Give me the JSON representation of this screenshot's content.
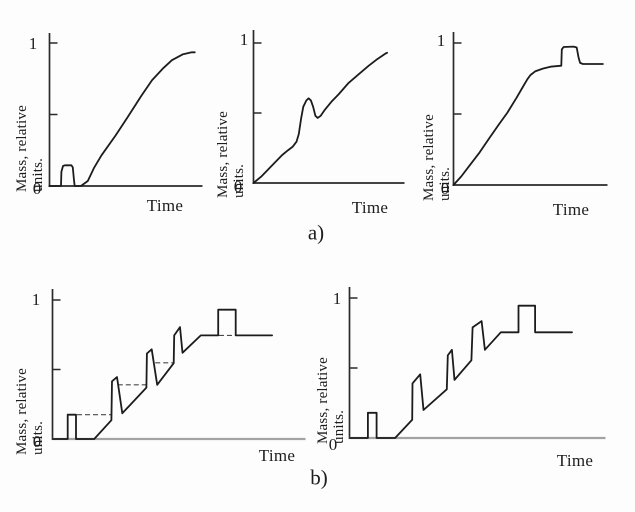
{
  "figure": {
    "background": "#fdfdfd",
    "ink": "#1c1c1c",
    "axis_color": "#2a2a2a",
    "baseline_gray": "#a3a3a3",
    "dash_color": "#4a4a4a"
  },
  "captions": {
    "row_a": "a)",
    "row_b": "b)"
  },
  "axis_text": {
    "one": "1",
    "zero": "0",
    "time": "Time",
    "mass_line1": "Mass, relative",
    "mass_line2": "units."
  },
  "chart_data": [
    {
      "id": "a1",
      "row": "a",
      "type": "line",
      "title": "",
      "xlabel": "Time",
      "ylabel": "Mass, relative units.",
      "ylim": [
        0,
        1
      ],
      "yticks": [
        0,
        0.5,
        1
      ],
      "ytick_labels": [
        "0",
        "",
        "1"
      ],
      "grid": false,
      "legend": false,
      "description": "small pulse to ~0.15 then smooth S-shaped rise to ~0.93 plateau",
      "points": [
        [
          0,
          0
        ],
        [
          0.075,
          0
        ],
        [
          0.078,
          0.1
        ],
        [
          0.088,
          0.14
        ],
        [
          0.1,
          0.145
        ],
        [
          0.143,
          0.145
        ],
        [
          0.152,
          0.13
        ],
        [
          0.16,
          0.04
        ],
        [
          0.165,
          0
        ],
        [
          0.205,
          0
        ],
        [
          0.25,
          0.035
        ],
        [
          0.29,
          0.125
        ],
        [
          0.34,
          0.215
        ],
        [
          0.43,
          0.35
        ],
        [
          0.51,
          0.48
        ],
        [
          0.6,
          0.63
        ],
        [
          0.67,
          0.74
        ],
        [
          0.74,
          0.82
        ],
        [
          0.8,
          0.88
        ],
        [
          0.87,
          0.92
        ],
        [
          0.93,
          0.935
        ],
        [
          0.95,
          0.935
        ]
      ]
    },
    {
      "id": "a2",
      "row": "a",
      "type": "line",
      "title": "",
      "xlabel": "Time",
      "ylabel": "Mass, relative units.",
      "ylim": [
        0,
        1
      ],
      "yticks": [
        0,
        0.5,
        1
      ],
      "ytick_labels": [
        "0",
        "",
        "1"
      ],
      "grid": false,
      "legend": false,
      "description": "near-linear rise, overshoot bump to ~0.60, dip to ~0.47, rise to ~0.93",
      "points": [
        [
          0,
          0
        ],
        [
          0.05,
          0.045
        ],
        [
          0.1,
          0.1
        ],
        [
          0.15,
          0.155
        ],
        [
          0.19,
          0.2
        ],
        [
          0.23,
          0.235
        ],
        [
          0.26,
          0.26
        ],
        [
          0.285,
          0.295
        ],
        [
          0.3,
          0.35
        ],
        [
          0.315,
          0.46
        ],
        [
          0.33,
          0.545
        ],
        [
          0.35,
          0.59
        ],
        [
          0.365,
          0.605
        ],
        [
          0.38,
          0.59
        ],
        [
          0.395,
          0.545
        ],
        [
          0.41,
          0.48
        ],
        [
          0.425,
          0.465
        ],
        [
          0.445,
          0.48
        ],
        [
          0.47,
          0.52
        ],
        [
          0.52,
          0.585
        ],
        [
          0.565,
          0.635
        ],
        [
          0.63,
          0.715
        ],
        [
          0.7,
          0.78
        ],
        [
          0.76,
          0.835
        ],
        [
          0.82,
          0.885
        ],
        [
          0.875,
          0.925
        ],
        [
          0.885,
          0.93
        ]
      ]
    },
    {
      "id": "a3",
      "row": "a",
      "type": "line",
      "title": "",
      "xlabel": "Time",
      "ylabel": "Mass, relative units.",
      "ylim": [
        0,
        1
      ],
      "yticks": [
        0,
        0.5,
        1
      ],
      "ytick_labels": [
        "0",
        "",
        "1"
      ],
      "grid": false,
      "legend": false,
      "description": "steady rise to ~0.84 plateau, rectangular pulse to ~0.97, back to ~0.85",
      "points": [
        [
          0,
          0
        ],
        [
          0.05,
          0.06
        ],
        [
          0.11,
          0.145
        ],
        [
          0.17,
          0.23
        ],
        [
          0.23,
          0.325
        ],
        [
          0.29,
          0.42
        ],
        [
          0.35,
          0.51
        ],
        [
          0.41,
          0.615
        ],
        [
          0.45,
          0.69
        ],
        [
          0.48,
          0.745
        ],
        [
          0.5,
          0.775
        ],
        [
          0.53,
          0.8
        ],
        [
          0.58,
          0.82
        ],
        [
          0.63,
          0.833
        ],
        [
          0.7,
          0.84
        ],
        [
          0.703,
          0.955
        ],
        [
          0.715,
          0.972
        ],
        [
          0.78,
          0.975
        ],
        [
          0.8,
          0.968
        ],
        [
          0.812,
          0.9
        ],
        [
          0.822,
          0.86
        ],
        [
          0.84,
          0.852
        ],
        [
          0.97,
          0.852
        ]
      ]
    },
    {
      "id": "b1",
      "row": "b",
      "type": "line",
      "title": "",
      "xlabel": "Time",
      "ylabel": "Mass, relative units.",
      "ylim": [
        0,
        1
      ],
      "yticks": [
        0,
        0.5,
        1
      ],
      "ytick_labels": [
        "0",
        "",
        "1"
      ],
      "grid": false,
      "legend": false,
      "description": "idealized: pulse to 0.18, ramp with three spike-and-drop teeth, plateau 0.745, pulse to 0.93; dashed level guides",
      "points": [
        [
          0,
          0
        ],
        [
          0.06,
          0
        ],
        [
          0.06,
          0.175
        ],
        [
          0.093,
          0.175
        ],
        [
          0.093,
          0
        ],
        [
          0.165,
          0
        ],
        [
          0.233,
          0.135
        ],
        [
          0.235,
          0.415
        ],
        [
          0.255,
          0.445
        ],
        [
          0.276,
          0.185
        ],
        [
          0.371,
          0.37
        ],
        [
          0.373,
          0.615
        ],
        [
          0.392,
          0.645
        ],
        [
          0.414,
          0.39
        ],
        [
          0.479,
          0.545
        ],
        [
          0.481,
          0.745
        ],
        [
          0.504,
          0.805
        ],
        [
          0.514,
          0.62
        ],
        [
          0.586,
          0.745
        ],
        [
          0.655,
          0.745
        ],
        [
          0.655,
          0.93
        ],
        [
          0.724,
          0.93
        ],
        [
          0.724,
          0.745
        ],
        [
          0.868,
          0.745
        ]
      ],
      "dashed_guides": [
        {
          "v": 0.175,
          "t0": 0.097,
          "t1": 0.236
        },
        {
          "v": 0.39,
          "t0": 0.258,
          "t1": 0.372
        },
        {
          "v": 0.548,
          "t0": 0.406,
          "t1": 0.479
        },
        {
          "v": 0.745,
          "t0": 0.658,
          "t1": 0.722
        }
      ]
    },
    {
      "id": "b2",
      "row": "b",
      "type": "line",
      "title": "",
      "xlabel": "Time",
      "ylabel": "Mass, relative units.",
      "ylim": [
        0,
        1
      ],
      "yticks": [
        0,
        0.5,
        1
      ],
      "ytick_labels": [
        "0",
        "",
        "1"
      ],
      "grid": false,
      "legend": false,
      "description": "same idealized staircase of spikes without dashed guides; plateau 0.755, pulse to 0.945",
      "points": [
        [
          0,
          0
        ],
        [
          0.072,
          0
        ],
        [
          0.072,
          0.18
        ],
        [
          0.106,
          0.18
        ],
        [
          0.106,
          0
        ],
        [
          0.178,
          0
        ],
        [
          0.245,
          0.13
        ],
        [
          0.246,
          0.39
        ],
        [
          0.276,
          0.455
        ],
        [
          0.289,
          0.2
        ],
        [
          0.38,
          0.348
        ],
        [
          0.384,
          0.59
        ],
        [
          0.4,
          0.63
        ],
        [
          0.41,
          0.415
        ],
        [
          0.476,
          0.555
        ],
        [
          0.481,
          0.79
        ],
        [
          0.516,
          0.835
        ],
        [
          0.529,
          0.63
        ],
        [
          0.591,
          0.755
        ],
        [
          0.66,
          0.755
        ],
        [
          0.66,
          0.945
        ],
        [
          0.725,
          0.945
        ],
        [
          0.725,
          0.755
        ],
        [
          0.869,
          0.755
        ]
      ],
      "dashed_guides": []
    }
  ]
}
